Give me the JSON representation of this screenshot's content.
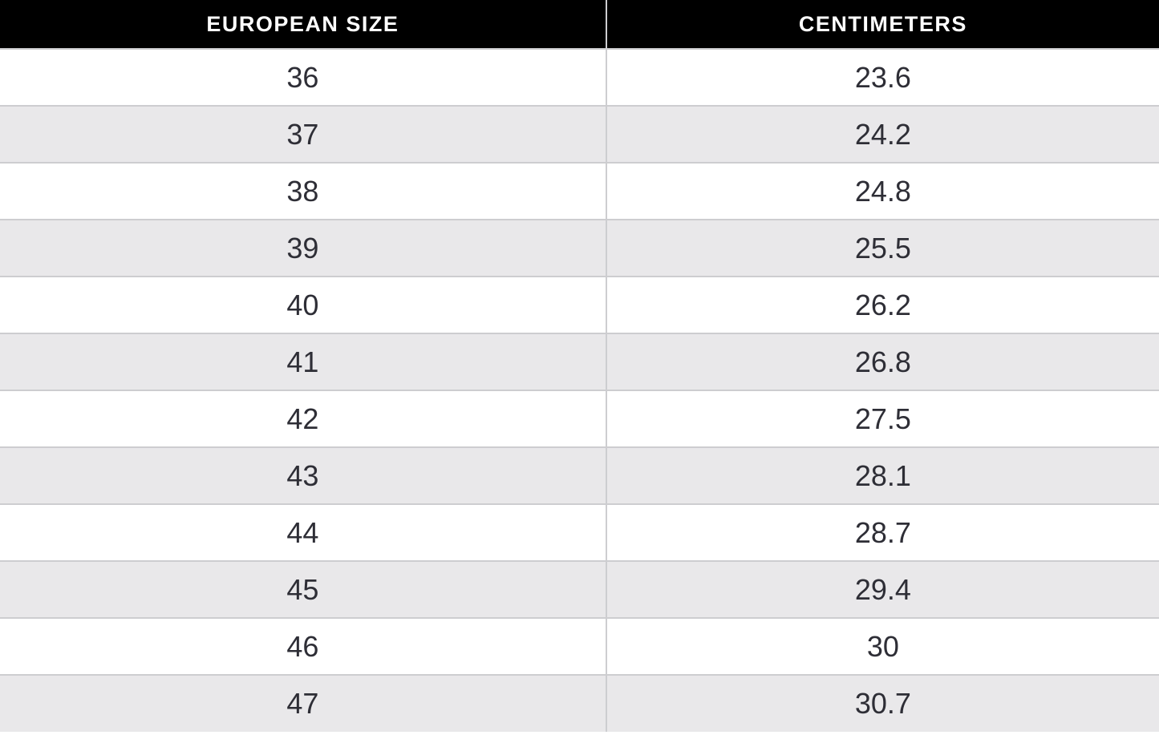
{
  "colors": {
    "header_bg": "#000000",
    "header_text": "#ffffff",
    "row_bg": "#ffffff",
    "row_alt_bg": "#e9e8ea",
    "border": "#cdcdd0",
    "body_text": "#2e2e36"
  },
  "chart_data": {
    "type": "table",
    "title": "",
    "columns": [
      "EUROPEAN SIZE",
      "CENTIMETERS"
    ],
    "rows": [
      [
        "36",
        "23.6"
      ],
      [
        "37",
        "24.2"
      ],
      [
        "38",
        "24.8"
      ],
      [
        "39",
        "25.5"
      ],
      [
        "40",
        "26.2"
      ],
      [
        "41",
        "26.8"
      ],
      [
        "42",
        "27.5"
      ],
      [
        "43",
        "28.1"
      ],
      [
        "44",
        "28.7"
      ],
      [
        "45",
        "29.4"
      ],
      [
        "46",
        "30"
      ],
      [
        "47",
        "30.7"
      ]
    ],
    "layout": {
      "header_style": "black-background-white-text",
      "row_striping": "alternating-white-and-light-gray",
      "column_split_percent": 52.3,
      "last_row_clipped": true
    }
  }
}
